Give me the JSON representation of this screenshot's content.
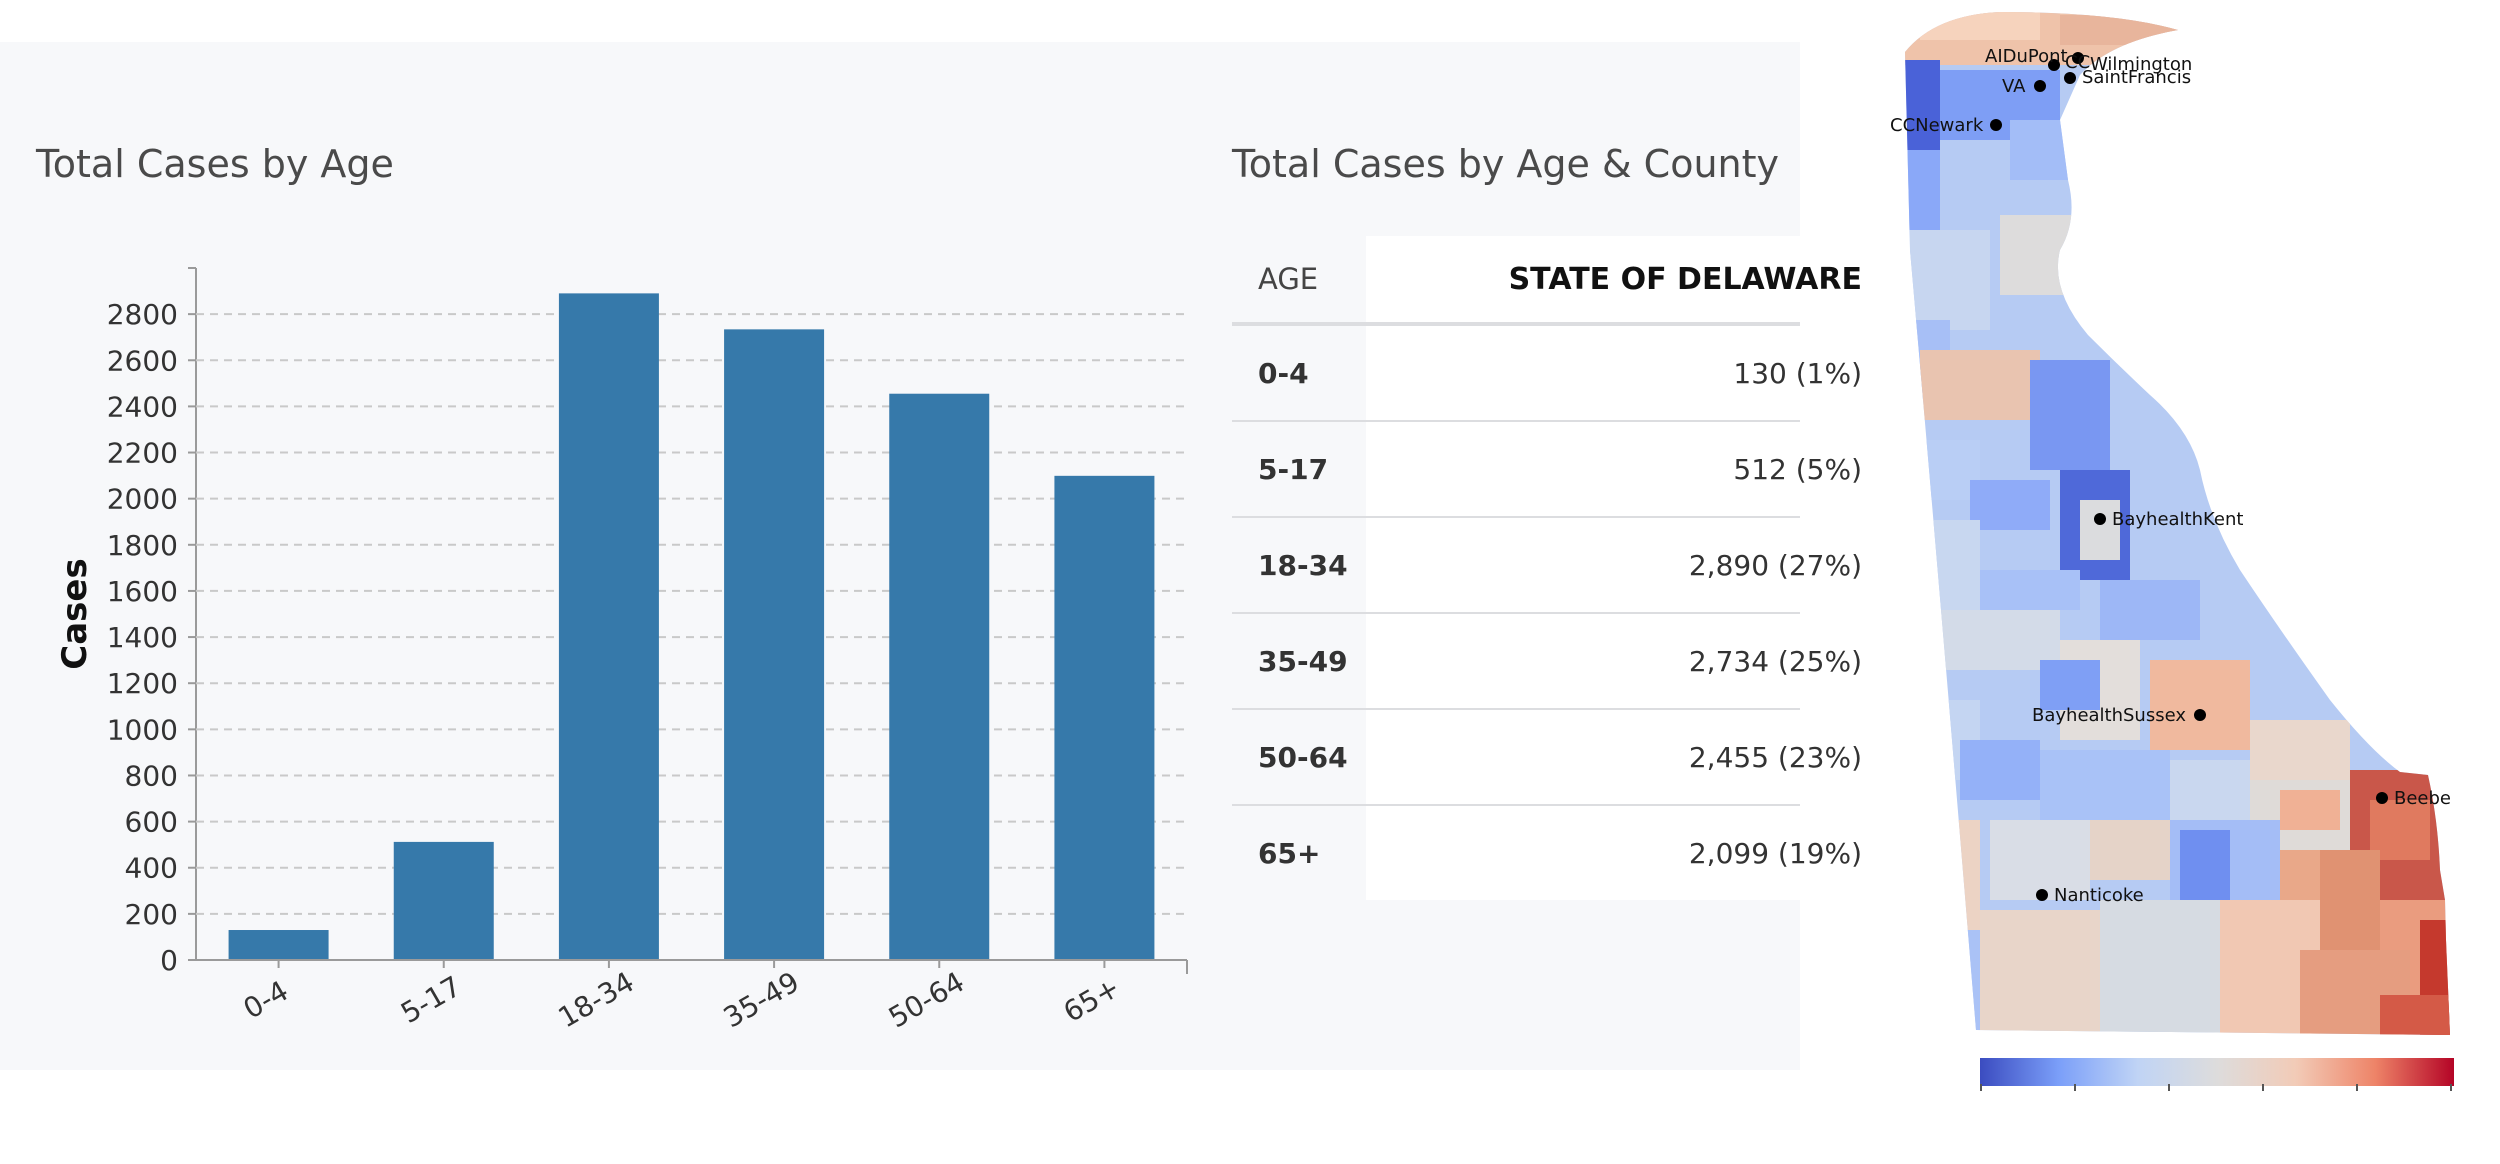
{
  "left_title": "Total Cases by Age",
  "table_title": "Total Cases by Age & County",
  "chart_data": {
    "type": "bar",
    "title": "Total Cases by Age",
    "xlabel": "",
    "ylabel": "Cases",
    "categories": [
      "0-4",
      "5-17",
      "18-34",
      "35-49",
      "50-64",
      "65+"
    ],
    "values": [
      130,
      512,
      2890,
      2734,
      2455,
      2099
    ],
    "ylim": [
      0,
      3000
    ],
    "yticks": [
      0,
      200,
      400,
      600,
      800,
      1000,
      1200,
      1400,
      1600,
      1800,
      2000,
      2200,
      2400,
      2600,
      2800
    ],
    "grid": true,
    "bar_color": "#3679aa"
  },
  "table": {
    "headers": [
      "AGE",
      "STATE OF DELAWARE"
    ],
    "rows": [
      {
        "age": "0-4",
        "value": "130 (1%)"
      },
      {
        "age": "5-17",
        "value": "512 (5%)"
      },
      {
        "age": "18-34",
        "value": "2,890 (27%)"
      },
      {
        "age": "35-49",
        "value": "2,734 (25%)"
      },
      {
        "age": "50-64",
        "value": "2,455 (23%)"
      },
      {
        "age": "65+",
        "value": "2,099 (19%)"
      }
    ]
  },
  "map": {
    "hospitals": [
      "AIDuPont",
      "CC",
      "Wilmington",
      "SaintFrancis",
      "VA",
      "CCNewark",
      "BayhealthKent",
      "BayhealthSussex",
      "Beebe",
      "Nanticoke"
    ],
    "colorbar": {
      "low_color": "#3b4cc0",
      "mid_color": "#dddcdc",
      "high_color": "#b40426"
    }
  }
}
